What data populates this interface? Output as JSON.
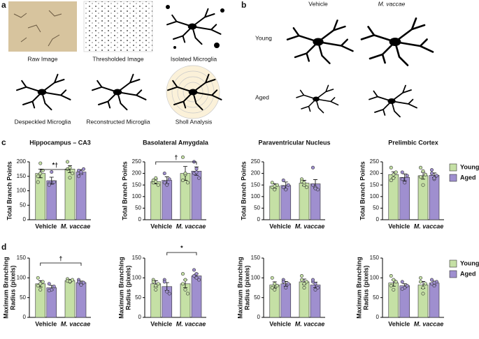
{
  "panels": {
    "a": {
      "letter": "a",
      "captions": [
        "Raw Image",
        "Thresholded Image",
        "Isolated Microglia",
        "Despeckled Microglia",
        "Reconstructed Microglia",
        "Sholl Analysis"
      ]
    },
    "b": {
      "letter": "b",
      "columns": [
        "Vehicle",
        "M. vaccae"
      ],
      "rows": [
        "Young",
        "Aged"
      ]
    },
    "c": {
      "letter": "c"
    },
    "d": {
      "letter": "d"
    }
  },
  "chart_data": [
    {
      "type": "bar",
      "title": "Hippocampus – CA3",
      "ylabel": "Total Branch Points",
      "categories": [
        "Vehicle",
        "M. vaccae"
      ],
      "series": [
        {
          "name": "Young",
          "color": "#c5e0a5",
          "values": [
            160,
            175
          ],
          "errors": [
            15,
            12
          ],
          "points": [
            [
              150,
              195,
              170,
              130,
              160
            ],
            [
              200,
              180,
              160,
              175,
              145
            ]
          ]
        },
        {
          "name": "Aged",
          "color": "#9f8fcf",
          "values": [
            135,
            165
          ],
          "errors": [
            12,
            8
          ],
          "points": [
            [
              125,
              165,
              130,
              120
            ],
            [
              170,
              160,
              175,
              150,
              165
            ]
          ]
        }
      ],
      "ylim": [
        0,
        200
      ],
      "yticks": [
        0,
        50,
        100,
        150,
        200
      ],
      "annotation": "*†"
    },
    {
      "type": "bar",
      "title": "Basolateral Amygdala",
      "ylabel": "Total Branch Points",
      "categories": [
        "Vehicle",
        "M. vaccae"
      ],
      "series": [
        {
          "name": "Young",
          "color": "#c5e0a5",
          "values": [
            165,
            200
          ],
          "errors": [
            10,
            30
          ],
          "points": [
            [
              160,
              180,
              150,
              170,
              165
            ],
            [
              270,
              195,
              160,
              170,
              200
            ]
          ]
        },
        {
          "name": "Aged",
          "color": "#9f8fcf",
          "values": [
            170,
            210
          ],
          "errors": [
            15,
            18
          ],
          "points": [
            [
              200,
              150,
              175,
              160
            ],
            [
              250,
              220,
              180,
              200,
              205
            ]
          ]
        }
      ],
      "ylim": [
        0,
        250
      ],
      "yticks": [
        0,
        50,
        100,
        150,
        200,
        250
      ],
      "annotation": "†"
    },
    {
      "type": "bar",
      "title": "Paraventricular Nucleus",
      "ylabel": "Total Branch Points",
      "categories": [
        "Vehicle",
        "M. vaccae"
      ],
      "series": [
        {
          "name": "Young",
          "color": "#c5e0a5",
          "values": [
            145,
            158
          ],
          "errors": [
            10,
            12
          ],
          "points": [
            [
              160,
              130,
              150,
              140,
              145
            ],
            [
              175,
              150,
              140,
              165,
              160
            ]
          ]
        },
        {
          "name": "Aged",
          "color": "#9f8fcf",
          "values": [
            148,
            155
          ],
          "errors": [
            15,
            18
          ],
          "points": [
            [
              170,
              130,
              150,
              140
            ],
            [
              225,
              140,
              130,
              150,
              135
            ]
          ]
        }
      ],
      "ylim": [
        0,
        250
      ],
      "yticks": [
        0,
        50,
        100,
        150,
        200,
        250
      ]
    },
    {
      "type": "bar",
      "title": "Prelimbic Cortex",
      "ylabel": "Total Branch Points",
      "categories": [
        "Vehicle",
        "M. vaccae"
      ],
      "series": [
        {
          "name": "Young",
          "color": "#c5e0a5",
          "values": [
            195,
            190
          ],
          "errors": [
            12,
            15
          ],
          "points": [
            [
              225,
              180,
              205,
              170,
              195
            ],
            [
              225,
              150,
              195,
              185,
              210
            ]
          ]
        },
        {
          "name": "Aged",
          "color": "#9f8fcf",
          "values": [
            183,
            192
          ],
          "errors": [
            15,
            10
          ],
          "points": [
            [
              205,
              160,
              190,
              175
            ],
            [
              215,
              175,
              190,
              200,
              180
            ]
          ]
        }
      ],
      "ylim": [
        0,
        250
      ],
      "yticks": [
        0,
        50,
        100,
        150,
        200,
        250
      ],
      "legend": "right"
    },
    {
      "type": "bar",
      "ylabel": [
        "Maximum Branching",
        "Radius (pixels)"
      ],
      "categories": [
        "Vehicle",
        "M. vaccae"
      ],
      "series": [
        {
          "name": "Young",
          "color": "#c5e0a5",
          "values": [
            85,
            93
          ],
          "errors": [
            8,
            3
          ],
          "points": [
            [
              100,
              70,
              90,
              80,
              85
            ],
            [
              97,
              90,
              95,
              92,
              91
            ]
          ]
        },
        {
          "name": "Aged",
          "color": "#9f8fcf",
          "values": [
            75,
            88
          ],
          "errors": [
            6,
            4
          ],
          "points": [
            [
              85,
              70,
              78,
              68
            ],
            [
              95,
              85,
              88,
              90,
              82
            ]
          ]
        }
      ],
      "ylim": [
        0,
        150
      ],
      "yticks": [
        0,
        50,
        100,
        150
      ],
      "annotation": "†"
    },
    {
      "type": "bar",
      "ylabel": [
        "Maximum Branching",
        "Radius (pixels)"
      ],
      "categories": [
        "Vehicle",
        "M. vaccae"
      ],
      "series": [
        {
          "name": "Young",
          "color": "#c5e0a5",
          "values": [
            85,
            85
          ],
          "errors": [
            8,
            10
          ],
          "points": [
            [
              95,
              70,
              85,
              90,
              80
            ],
            [
              110,
              70,
              60,
              85,
              95
            ]
          ]
        },
        {
          "name": "Aged",
          "color": "#9f8fcf",
          "values": [
            78,
            105
          ],
          "errors": [
            10,
            6
          ],
          "points": [
            [
              95,
              65,
              60,
              90
            ],
            [
              120,
              100,
              95,
              105,
              110
            ]
          ]
        }
      ],
      "ylim": [
        0,
        150
      ],
      "yticks": [
        0,
        50,
        100,
        150
      ],
      "annotation": "*"
    },
    {
      "type": "bar",
      "ylabel": [
        "Maximum Branching",
        "Radius (pixels)"
      ],
      "categories": [
        "Vehicle",
        "M. vaccae"
      ],
      "series": [
        {
          "name": "Young",
          "color": "#c5e0a5",
          "values": [
            82,
            90
          ],
          "errors": [
            8,
            7
          ],
          "points": [
            [
              100,
              70,
              80,
              75,
              85
            ],
            [
              105,
              75,
              90,
              95,
              85
            ]
          ]
        },
        {
          "name": "Aged",
          "color": "#9f8fcf",
          "values": [
            85,
            82
          ],
          "errors": [
            6,
            7
          ],
          "points": [
            [
              95,
              75,
              85,
              90
            ],
            [
              90,
              70,
              75,
              95,
              85
            ]
          ]
        }
      ],
      "ylim": [
        0,
        150
      ],
      "yticks": [
        0,
        50,
        100,
        150
      ]
    },
    {
      "type": "bar",
      "ylabel": [
        "Maximum Branching",
        "Radius (pixels)"
      ],
      "categories": [
        "Vehicle",
        "M. vaccae"
      ],
      "series": [
        {
          "name": "Young",
          "color": "#c5e0a5",
          "values": [
            87,
            82
          ],
          "errors": [
            8,
            9
          ],
          "points": [
            [
              105,
              70,
              90,
              80,
              95
            ],
            [
              100,
              60,
              85,
              90,
              75
            ]
          ]
        },
        {
          "name": "Aged",
          "color": "#9f8fcf",
          "values": [
            80,
            87
          ],
          "errors": [
            5,
            5
          ],
          "points": [
            [
              90,
              75,
              80,
              72
            ],
            [
              95,
              80,
              90,
              85,
              88
            ]
          ]
        }
      ],
      "ylim": [
        0,
        150
      ],
      "yticks": [
        0,
        50,
        100,
        150
      ],
      "legend": "right"
    }
  ]
}
